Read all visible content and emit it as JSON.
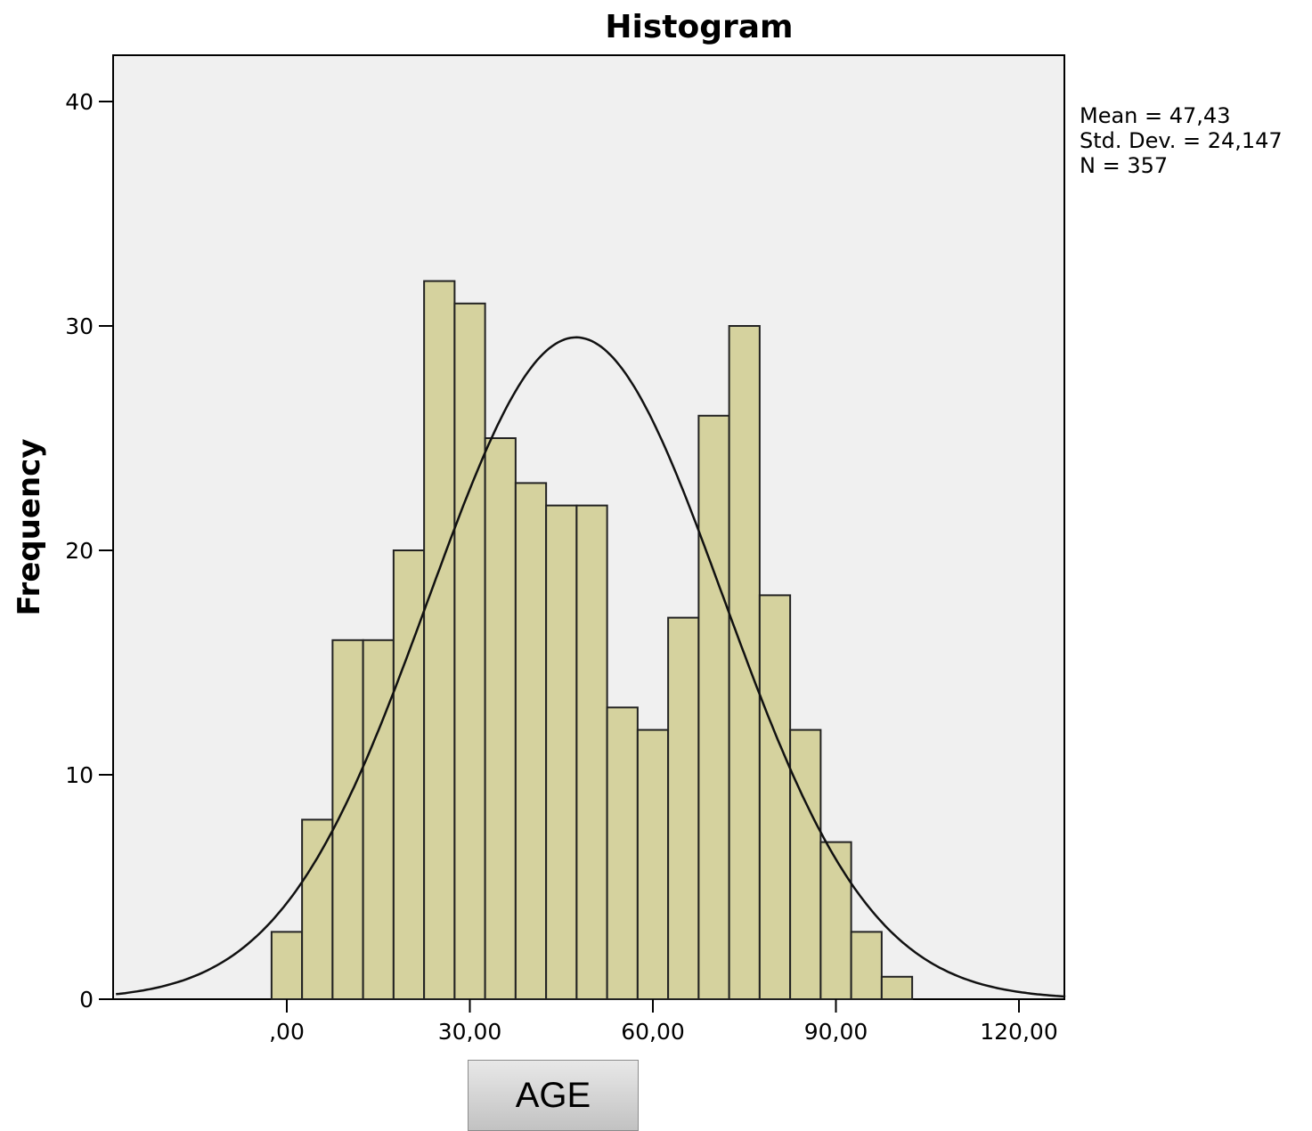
{
  "chart_data": {
    "type": "bar",
    "title": "Histogram",
    "ylabel": "Frequency",
    "xlabel": "AGE",
    "bin_width": 5,
    "bins": [
      {
        "start": -2.5,
        "end": 2.5,
        "value": 3
      },
      {
        "start": 2.5,
        "end": 7.5,
        "value": 8
      },
      {
        "start": 7.5,
        "end": 12.5,
        "value": 16
      },
      {
        "start": 12.5,
        "end": 17.5,
        "value": 16
      },
      {
        "start": 17.5,
        "end": 22.5,
        "value": 20
      },
      {
        "start": 22.5,
        "end": 27.5,
        "value": 32
      },
      {
        "start": 27.5,
        "end": 32.5,
        "value": 31
      },
      {
        "start": 32.5,
        "end": 37.5,
        "value": 25
      },
      {
        "start": 37.5,
        "end": 42.5,
        "value": 23
      },
      {
        "start": 42.5,
        "end": 47.5,
        "value": 22
      },
      {
        "start": 47.5,
        "end": 52.5,
        "value": 22
      },
      {
        "start": 52.5,
        "end": 57.5,
        "value": 13
      },
      {
        "start": 57.5,
        "end": 62.5,
        "value": 12
      },
      {
        "start": 62.5,
        "end": 67.5,
        "value": 17
      },
      {
        "start": 67.5,
        "end": 72.5,
        "value": 26
      },
      {
        "start": 72.5,
        "end": 77.5,
        "value": 30
      },
      {
        "start": 77.5,
        "end": 82.5,
        "value": 18
      },
      {
        "start": 82.5,
        "end": 87.5,
        "value": 12
      },
      {
        "start": 87.5,
        "end": 92.5,
        "value": 7
      },
      {
        "start": 92.5,
        "end": 97.5,
        "value": 3
      },
      {
        "start": 97.5,
        "end": 102.5,
        "value": 1
      }
    ],
    "xlim": [
      -28,
      128
    ],
    "ylim": [
      0,
      42
    ],
    "x_ticks": [
      {
        "v": 0,
        "label": ",00"
      },
      {
        "v": 30,
        "label": "30,00"
      },
      {
        "v": 60,
        "label": "60,00"
      },
      {
        "v": 90,
        "label": "90,00"
      },
      {
        "v": 120,
        "label": "120,00"
      }
    ],
    "y_ticks": [
      {
        "v": 0,
        "label": "0"
      },
      {
        "v": 10,
        "label": "10"
      },
      {
        "v": 20,
        "label": "20"
      },
      {
        "v": 30,
        "label": "30"
      },
      {
        "v": 40,
        "label": "40"
      }
    ],
    "normal_curve": {
      "mean": 47.43,
      "std": 24.147,
      "n": 357
    },
    "stats": [
      "Mean = 47,43",
      "Std. Dev. = 24,147",
      "N = 357"
    ],
    "grid": false,
    "legend": "top-right",
    "colors": {
      "plot_background": "#f0f0f0",
      "bar_fill": "#d5d29e",
      "bar_stroke": "#222222",
      "curve": "#111111"
    }
  }
}
